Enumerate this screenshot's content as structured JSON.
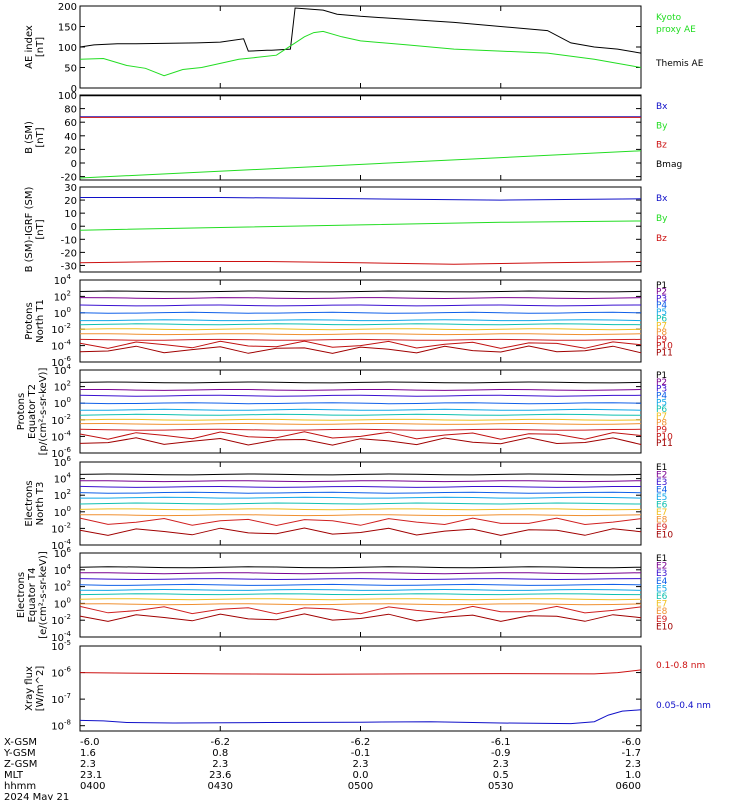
{
  "colors": {
    "black": "#000000",
    "green": "#22dd22",
    "blue": "#1010c8",
    "red": "#cc1010",
    "p": [
      "#000000",
      "#7a0090",
      "#3a10d0",
      "#1060e8",
      "#10a8e8",
      "#10c0b0",
      "#f0c020",
      "#f09030",
      "#d02020",
      "#c01010",
      "#a00000"
    ]
  },
  "chart_data": [
    {
      "type": "line",
      "id": "ae",
      "ylabel": [
        "AE index",
        "[nT]"
      ],
      "ylim": [
        0,
        200
      ],
      "yticks": [
        {
          "v": 0,
          "t": "0"
        },
        {
          "v": 50,
          "t": "50"
        },
        {
          "v": 100,
          "t": "100"
        },
        {
          "v": 150,
          "t": "150"
        },
        {
          "v": 200,
          "t": "200"
        }
      ],
      "scale": "linear",
      "legend": [
        {
          "t": "Kyoto",
          "c": "green"
        },
        {
          "t": "proxy AE",
          "c": "green"
        },
        {
          "t": "Themis AE",
          "c": "black"
        }
      ],
      "series": [
        {
          "name": "Themis AE",
          "color": "black",
          "x": [
            0,
            3,
            8,
            12,
            25,
            30,
            35,
            36,
            40,
            41,
            45,
            46,
            52,
            55,
            60,
            80,
            100,
            105,
            110,
            115,
            120
          ],
          "y": [
            100,
            105,
            108,
            108,
            110,
            112,
            120,
            90,
            92,
            92,
            95,
            195,
            190,
            180,
            175,
            160,
            140,
            110,
            100,
            95,
            85
          ]
        },
        {
          "name": "Kyoto proxy AE",
          "color": "green",
          "x": [
            0,
            5,
            10,
            14,
            18,
            22,
            26,
            30,
            34,
            38,
            42,
            44,
            46,
            48,
            50,
            52,
            56,
            60,
            70,
            80,
            90,
            100,
            110,
            115,
            120
          ],
          "y": [
            70,
            72,
            55,
            48,
            30,
            45,
            50,
            60,
            70,
            75,
            80,
            95,
            110,
            125,
            135,
            138,
            125,
            115,
            105,
            95,
            90,
            85,
            70,
            60,
            50
          ]
        }
      ]
    },
    {
      "type": "line",
      "id": "bsm",
      "ylabel": [
        "B (SM)",
        "[nT]"
      ],
      "ylim": [
        -25,
        100
      ],
      "yticks": [
        {
          "v": -20,
          "t": "-20"
        },
        {
          "v": 0,
          "t": "0"
        },
        {
          "v": 20,
          "t": "20"
        },
        {
          "v": 40,
          "t": "40"
        },
        {
          "v": 60,
          "t": "60"
        },
        {
          "v": 80,
          "t": "80"
        },
        {
          "v": 100,
          "t": "100"
        }
      ],
      "scale": "linear",
      "legend": [
        {
          "t": "Bx",
          "c": "blue"
        },
        {
          "t": "By",
          "c": "green"
        },
        {
          "t": "Bz",
          "c": "red"
        },
        {
          "t": "Bmag",
          "c": "black"
        }
      ],
      "series": [
        {
          "name": "Bmag",
          "color": "black",
          "x": [
            0,
            120
          ],
          "y": [
            99,
            99
          ]
        },
        {
          "name": "Bx",
          "color": "blue",
          "x": [
            0,
            120
          ],
          "y": [
            68,
            68
          ]
        },
        {
          "name": "Bz",
          "color": "red",
          "x": [
            0,
            120
          ],
          "y": [
            67,
            67
          ]
        },
        {
          "name": "By",
          "color": "green",
          "x": [
            0,
            120
          ],
          "y": [
            -22,
            18
          ]
        }
      ]
    },
    {
      "type": "line",
      "id": "bdiff",
      "ylabel": [
        "B (SM)-IGRF (SM)",
        "[nT]"
      ],
      "ylim": [
        -35,
        30
      ],
      "yticks": [
        {
          "v": -30,
          "t": "-30"
        },
        {
          "v": -20,
          "t": "-20"
        },
        {
          "v": -10,
          "t": "-10"
        },
        {
          "v": 0,
          "t": "0"
        },
        {
          "v": 10,
          "t": "10"
        },
        {
          "v": 20,
          "t": "20"
        },
        {
          "v": 30,
          "t": "30"
        }
      ],
      "scale": "linear",
      "legend": [
        {
          "t": "Bx",
          "c": "blue"
        },
        {
          "t": "By",
          "c": "green"
        },
        {
          "t": "Bz",
          "c": "red"
        }
      ],
      "series": [
        {
          "name": "Bx",
          "color": "blue",
          "x": [
            0,
            30,
            60,
            90,
            120
          ],
          "y": [
            22,
            22,
            21,
            20,
            21
          ]
        },
        {
          "name": "By",
          "color": "green",
          "x": [
            0,
            30,
            60,
            90,
            120
          ],
          "y": [
            -3,
            -1,
            1,
            3,
            4
          ]
        },
        {
          "name": "Bz",
          "color": "red",
          "x": [
            0,
            20,
            40,
            60,
            80,
            100,
            120
          ],
          "y": [
            -28,
            -27,
            -27,
            -28,
            -29,
            -28,
            -27
          ]
        }
      ]
    },
    {
      "type": "line",
      "id": "pn",
      "ylabel": [
        "Protons",
        "North T1"
      ],
      "ylim": [
        -6,
        4
      ],
      "scale": "log",
      "yticks": [
        {
          "v": -6,
          "t": "10^-6"
        },
        {
          "v": -4,
          "t": "10^-4"
        },
        {
          "v": -2,
          "t": "10^-2"
        },
        {
          "v": 0,
          "t": "10^0"
        },
        {
          "v": 2,
          "t": "10^2"
        },
        {
          "v": 4,
          "t": "10^4"
        }
      ],
      "legend": [
        {
          "t": "P1",
          "c": "p0"
        },
        {
          "t": "P2",
          "c": "p1"
        },
        {
          "t": "P3",
          "c": "p2"
        },
        {
          "t": "P4",
          "c": "p3"
        },
        {
          "t": "P5",
          "c": "p4"
        },
        {
          "t": "P6",
          "c": "p5"
        },
        {
          "t": "P7",
          "c": "p6"
        },
        {
          "t": "P8",
          "c": "p7"
        },
        {
          "t": "P9",
          "c": "p8"
        },
        {
          "t": "P10",
          "c": "p9"
        },
        {
          "t": "P11",
          "c": "p10"
        }
      ],
      "levels": [
        2.6,
        1.8,
        0.9,
        0.0,
        -0.9,
        -1.4,
        -2.0,
        -2.6,
        -3.3,
        -3.9,
        -4.5
      ]
    },
    {
      "type": "line",
      "id": "pe",
      "ylabel": [
        "Protons",
        "Equator T2",
        "[p/(cm²-s-sr-keV)]"
      ],
      "ylim": [
        -6,
        4
      ],
      "scale": "log",
      "yticks": [
        {
          "v": -6,
          "t": "10^-6"
        },
        {
          "v": -4,
          "t": "10^-4"
        },
        {
          "v": -2,
          "t": "10^-2"
        },
        {
          "v": 0,
          "t": "10^0"
        },
        {
          "v": 2,
          "t": "10^2"
        },
        {
          "v": 4,
          "t": "10^4"
        }
      ],
      "legend": [
        {
          "t": "P1",
          "c": "p0"
        },
        {
          "t": "P2",
          "c": "p1"
        },
        {
          "t": "P3",
          "c": "p2"
        },
        {
          "t": "P4",
          "c": "p3"
        },
        {
          "t": "P5",
          "c": "p4"
        },
        {
          "t": "P6",
          "c": "p5"
        },
        {
          "t": "P7",
          "c": "p6"
        },
        {
          "t": "P8",
          "c": "p7"
        },
        {
          "t": "P9",
          "c": "p8"
        },
        {
          "t": "P10",
          "c": "p9"
        },
        {
          "t": "P11",
          "c": "p10"
        }
      ],
      "levels": [
        2.5,
        1.6,
        0.9,
        0.0,
        -0.8,
        -1.4,
        -2.0,
        -2.5,
        -3.2,
        -3.9,
        -4.6
      ]
    },
    {
      "type": "line",
      "id": "en",
      "ylabel": [
        "Electrons",
        "North T3"
      ],
      "ylim": [
        -4,
        6
      ],
      "scale": "log",
      "yticks": [
        {
          "v": -4,
          "t": "10^-4"
        },
        {
          "v": -2,
          "t": "10^-2"
        },
        {
          "v": 0,
          "t": "10^0"
        },
        {
          "v": 2,
          "t": "10^2"
        },
        {
          "v": 4,
          "t": "10^4"
        },
        {
          "v": 6,
          "t": "10^6"
        }
      ],
      "legend": [
        {
          "t": "E1",
          "c": "p0"
        },
        {
          "t": "E2",
          "c": "p1"
        },
        {
          "t": "E3",
          "c": "p2"
        },
        {
          "t": "E4",
          "c": "p3"
        },
        {
          "t": "E5",
          "c": "p4"
        },
        {
          "t": "E6",
          "c": "p5"
        },
        {
          "t": "E7",
          "c": "p6"
        },
        {
          "t": "E8",
          "c": "p7"
        },
        {
          "t": "E9",
          "c": "p8"
        },
        {
          "t": "E10",
          "c": "p10"
        }
      ],
      "levels": [
        4.5,
        3.7,
        3.0,
        2.3,
        1.7,
        1.0,
        0.3,
        -0.4,
        -1.2,
        -2.4
      ]
    },
    {
      "type": "line",
      "id": "ee",
      "ylabel": [
        "Electrons",
        "Equator T4",
        "[e/(cm²-s-sr-keV)]"
      ],
      "ylim": [
        -4,
        6
      ],
      "scale": "log",
      "yticks": [
        {
          "v": -4,
          "t": "10^-4"
        },
        {
          "v": -2,
          "t": "10^-2"
        },
        {
          "v": 0,
          "t": "10^0"
        },
        {
          "v": 2,
          "t": "10^2"
        },
        {
          "v": 4,
          "t": "10^4"
        },
        {
          "v": 6,
          "t": "10^6"
        }
      ],
      "legend": [
        {
          "t": "E1",
          "c": "p0"
        },
        {
          "t": "E2",
          "c": "p1"
        },
        {
          "t": "E3",
          "c": "p2"
        },
        {
          "t": "E4",
          "c": "p3"
        },
        {
          "t": "E5",
          "c": "p4"
        },
        {
          "t": "E6",
          "c": "p5"
        },
        {
          "t": "E7",
          "c": "p6"
        },
        {
          "t": "E8",
          "c": "p7"
        },
        {
          "t": "E9",
          "c": "p8"
        },
        {
          "t": "E10",
          "c": "p10"
        }
      ],
      "levels": [
        4.3,
        3.6,
        2.9,
        2.2,
        1.6,
        1.1,
        0.5,
        -0.1,
        -0.8,
        -1.7
      ]
    },
    {
      "type": "line",
      "id": "xray",
      "ylabel": [
        "Xray flux",
        "[W/m^2]"
      ],
      "ylim": [
        -8.2,
        -5
      ],
      "scale": "log",
      "yticks": [
        {
          "v": -8,
          "t": "10^-8"
        },
        {
          "v": -7,
          "t": "10^-7"
        },
        {
          "v": -6,
          "t": "10^-6"
        },
        {
          "v": -5,
          "t": "10^-5"
        }
      ],
      "legend": [
        {
          "t": "0.1-0.8 nm",
          "c": "red"
        },
        {
          "t": "0.05-0.4 nm",
          "c": "blue"
        }
      ],
      "series": [
        {
          "name": "0.1-0.8 nm",
          "color": "red",
          "x": [
            0,
            10,
            30,
            50,
            70,
            90,
            110,
            115,
            120
          ],
          "y": [
            -6.0,
            -6.02,
            -6.05,
            -6.06,
            -6.05,
            -6.04,
            -6.05,
            -6.0,
            -5.9
          ]
        },
        {
          "name": "0.05-0.4 nm",
          "color": "blue",
          "x": [
            0,
            5,
            10,
            20,
            40,
            60,
            75,
            90,
            105,
            110,
            113,
            116,
            120
          ],
          "y": [
            -7.8,
            -7.82,
            -7.88,
            -7.9,
            -7.88,
            -7.87,
            -7.85,
            -7.9,
            -7.92,
            -7.85,
            -7.6,
            -7.45,
            -7.4
          ]
        }
      ]
    }
  ],
  "x_axis": {
    "xlim": [
      0,
      120
    ],
    "rows": [
      {
        "label": "X-GSM",
        "values": [
          "-6.0",
          "-6.2",
          "-6.2",
          "-6.1",
          "-6.0"
        ]
      },
      {
        "label": "Y-GSM",
        "values": [
          "1.6",
          "0.8",
          "-0.1",
          "-0.9",
          "-1.7"
        ]
      },
      {
        "label": "Z-GSM",
        "values": [
          "2.3",
          "2.3",
          "2.3",
          "2.3",
          "2.3"
        ]
      },
      {
        "label": "MLT",
        "values": [
          "23.1",
          "23.6",
          "0.0",
          "0.5",
          "1.0"
        ]
      },
      {
        "label": "hhmm",
        "values": [
          "0400",
          "0430",
          "0500",
          "0530",
          "0600"
        ]
      }
    ],
    "date": "2024 May 21"
  }
}
